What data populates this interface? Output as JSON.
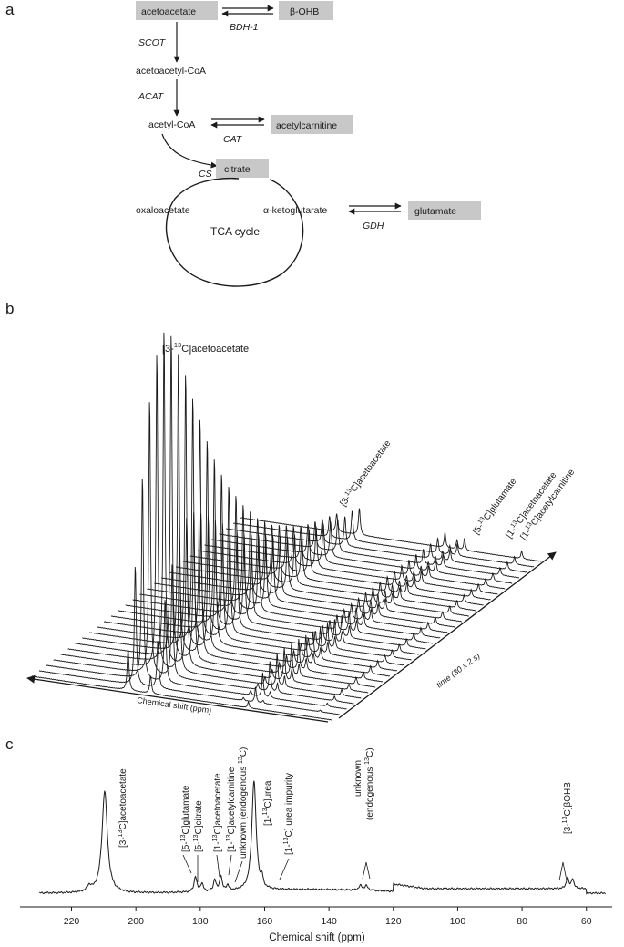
{
  "panel_a": {
    "label": "a",
    "metabolites": {
      "acetoacetate": "acetoacetate",
      "bohb": "β-OHB",
      "acetoacetyl_coa": "acetoacetyl-CoA",
      "acetyl_coa": "acetyl-CoA",
      "acetylcarnitine": "acetylcarnitine",
      "citrate": "citrate",
      "oxaloacetate": "oxaloacetate",
      "akg": "α-ketoglutarate",
      "glutamate": "glutamate",
      "tca": "TCA cycle"
    },
    "enzymes": {
      "bdh": "BDH-1",
      "scot": "SCOT",
      "acat": "ACAT",
      "cat": "CAT",
      "cs": "CS",
      "gdh": "GDH"
    }
  },
  "panel_b": {
    "label": "b",
    "peak_labels": [
      {
        "pre": "[3-",
        "sup": "13",
        "post": "C]acetoacetate"
      },
      {
        "pre": "[3-",
        "sup": "13",
        "post": "C]acetoacetate"
      },
      {
        "pre": "[5-",
        "sup": "13",
        "post": "C]glutamate"
      },
      {
        "pre": "[1-",
        "sup": "13",
        "post": "C]acetoacetate"
      },
      {
        "pre": "[1-",
        "sup": "13",
        "post": "C]acetylcarnitine"
      }
    ],
    "xaxis_label": "Chemical shift (ppm)",
    "time_label": "time (30 x 2 s)",
    "n_spectra": 30,
    "peak_amplitudes": {
      "acetoacetate_3": [
        14,
        40,
        68,
        92,
        106,
        112,
        109,
        101,
        92,
        82,
        73,
        64,
        56,
        49,
        43,
        38,
        33,
        29,
        25,
        22,
        19,
        17,
        15,
        13,
        11,
        10,
        9,
        8,
        7,
        6
      ],
      "urea": [
        6,
        16,
        28,
        38,
        46,
        50,
        50,
        48,
        45,
        42,
        39,
        36,
        33,
        30,
        28,
        26,
        24,
        22,
        20,
        18,
        17,
        16,
        15,
        14,
        13,
        12,
        11,
        10,
        10,
        9
      ],
      "glutamate_5": [
        0,
        1,
        1.5,
        2,
        2.5,
        3,
        3.5,
        4,
        4,
        4.5,
        4.5,
        5,
        5,
        5,
        5,
        5,
        5,
        5,
        5,
        5,
        5,
        5,
        5,
        5,
        5,
        5,
        5,
        5,
        5,
        5
      ],
      "acetoacetate_1": [
        2,
        5,
        8,
        10,
        11,
        11,
        10.5,
        10,
        9.5,
        9,
        8.5,
        8,
        7.5,
        7,
        6.5,
        6,
        5.5,
        5,
        5,
        4.5,
        4.5,
        4,
        4,
        3.5,
        3.5,
        3,
        3,
        3,
        3,
        3
      ],
      "acetylcarnitine_1": [
        0,
        1,
        2,
        3,
        3.5,
        4,
        4,
        4,
        4,
        4,
        4,
        4,
        4,
        4,
        4,
        4,
        4,
        4,
        4,
        4,
        4,
        4,
        4,
        4,
        4,
        4,
        4,
        4,
        4,
        4
      ],
      "bohb_3": [
        0,
        0.5,
        1,
        1.5,
        2,
        2,
        2.5,
        2.5,
        2.5,
        2.5,
        2.5,
        2.5,
        2.5,
        2.5,
        2.5,
        2.5,
        2.5,
        2.5,
        2.5,
        2.5,
        2.5,
        2.5,
        2.5,
        2.5,
        2.5,
        2.5,
        2.5,
        2.5,
        2.5,
        2.5
      ]
    }
  },
  "panel_c": {
    "label": "c",
    "annotations": [
      {
        "pre": "[3-",
        "sup": "13",
        "post": "C]acetoacetate"
      },
      {
        "pre": "[5-",
        "sup": "13",
        "post": "C]glutamate"
      },
      {
        "pre": "[5-",
        "sup": "13",
        "post": "C]citrate"
      },
      {
        "pre": "[1-",
        "sup": "13",
        "post": "C]acetoacetate"
      },
      {
        "pre": "[1-",
        "sup": "13",
        "post": "C]acetylcarnitine"
      },
      {
        "pre": "unknown (endogenous ",
        "sup": "13",
        "post": "C)"
      },
      {
        "pre": "[1-",
        "sup": "13",
        "post": "C]urea"
      },
      {
        "pre": "[1-",
        "sup": "13",
        "post": "C] urea impurity"
      },
      {
        "pre": "unknown",
        "sup": "",
        "post": ""
      },
      {
        "pre": "(endogenous ",
        "sup": "13",
        "post": "C)"
      },
      {
        "pre": "[3-",
        "sup": "13",
        "post": "C]βOHB"
      }
    ]
  },
  "chart_data": {
    "type": "line",
    "xlabel": "Chemical shift (ppm)",
    "xlim": [
      236,
      52
    ],
    "x_reversed": true,
    "xticks": [
      "220",
      "200",
      "180",
      "160",
      "140",
      "120",
      "100",
      "80",
      "60"
    ],
    "peaks": [
      {
        "ppm": 214.5,
        "height": 6,
        "width": 0.8
      },
      {
        "ppm": 209.7,
        "height": 112,
        "width": 1.0
      },
      {
        "ppm": 181.5,
        "height": 17,
        "width": 0.5
      },
      {
        "ppm": 179.5,
        "height": 9,
        "width": 0.5
      },
      {
        "ppm": 175.5,
        "height": 13,
        "width": 0.45
      },
      {
        "ppm": 173.6,
        "height": 17,
        "width": 0.45
      },
      {
        "ppm": 171.5,
        "height": 6,
        "width": 0.5
      },
      {
        "ppm": 163.3,
        "height": 121,
        "width": 0.8
      },
      {
        "ppm": 160.8,
        "height": 10,
        "width": 0.35
      },
      {
        "ppm": 130.2,
        "height": 5,
        "width": 0.6
      },
      {
        "ppm": 128.4,
        "height": 5,
        "width": 0.6
      },
      {
        "ppm": 65.9,
        "height": 12,
        "width": 0.45
      },
      {
        "ppm": 64.3,
        "height": 11,
        "width": 0.45
      }
    ]
  }
}
